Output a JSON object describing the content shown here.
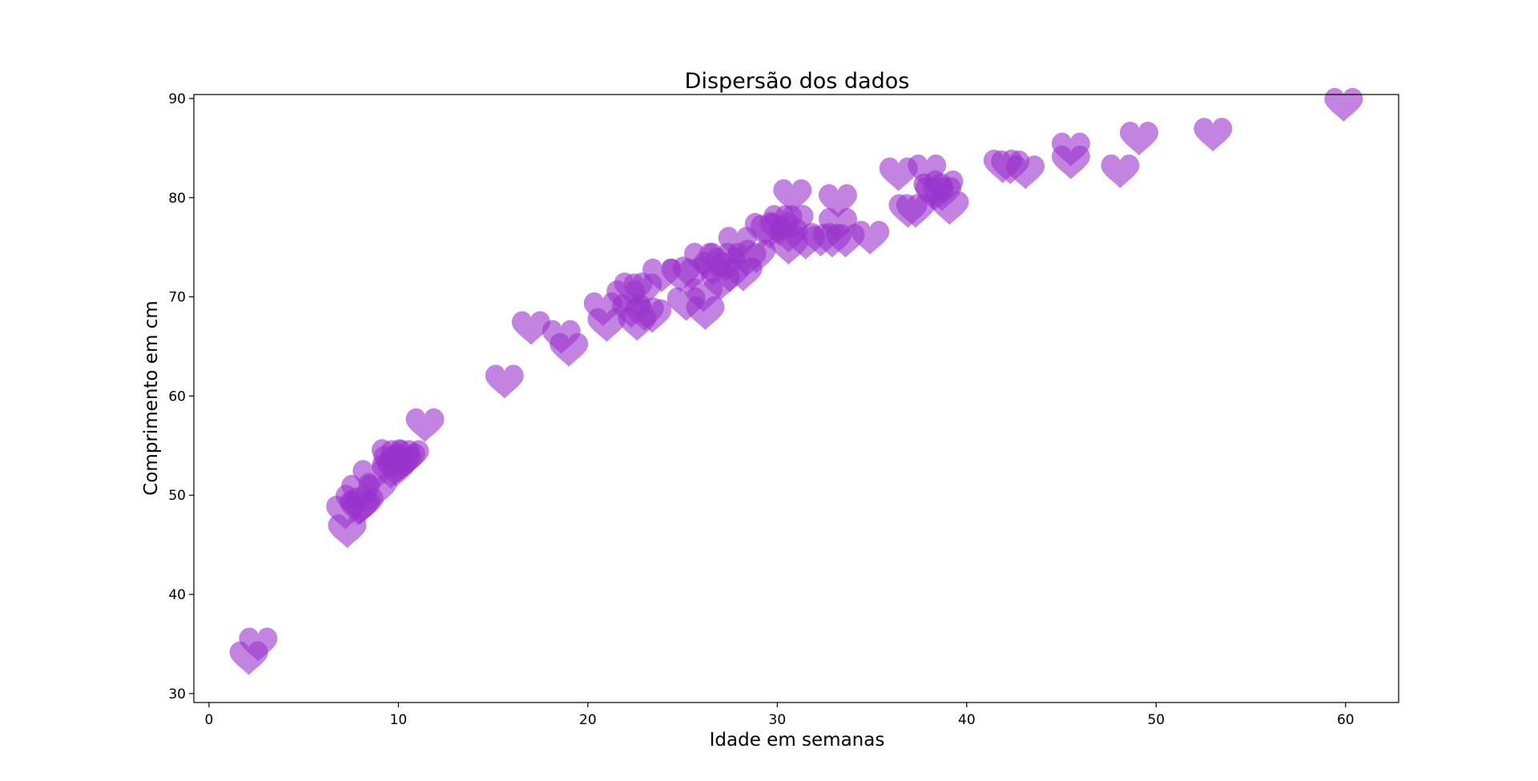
{
  "chart_data": {
    "type": "scatter",
    "title": "Dispersão dos dados",
    "xlabel": "Idade em semanas",
    "ylabel": "Comprimento em cm",
    "xlim": [
      -0.8,
      62.8
    ],
    "ylim": [
      29.1,
      90.4
    ],
    "xticks": [
      0,
      10,
      20,
      30,
      40,
      50,
      60
    ],
    "yticks": [
      30,
      40,
      50,
      60,
      70,
      80,
      90
    ],
    "grid": false,
    "marker": "heart",
    "color": "#9932CC",
    "alpha": 0.6,
    "points": [
      [
        2.1,
        33.8
      ],
      [
        2.6,
        35.2
      ],
      [
        7.3,
        46.6
      ],
      [
        7.2,
        48.5
      ],
      [
        7.7,
        49.6
      ],
      [
        8.0,
        50.6
      ],
      [
        7.9,
        48.9
      ],
      [
        8.2,
        49.3
      ],
      [
        8.0,
        49.0
      ],
      [
        8.6,
        52.1
      ],
      [
        8.9,
        50.8
      ],
      [
        9.6,
        54.2
      ],
      [
        9.7,
        53.5
      ],
      [
        10.1,
        54.1
      ],
      [
        10.4,
        53.8
      ],
      [
        10.0,
        53.2
      ],
      [
        9.9,
        52.8
      ],
      [
        9.6,
        52.6
      ],
      [
        10.2,
        53.5
      ],
      [
        10.6,
        54.1
      ],
      [
        11.4,
        57.3
      ],
      [
        15.6,
        61.7
      ],
      [
        17.0,
        67.1
      ],
      [
        18.6,
        66.2
      ],
      [
        19.0,
        64.9
      ],
      [
        20.8,
        69.0
      ],
      [
        21.0,
        67.4
      ],
      [
        22.0,
        70.2
      ],
      [
        22.4,
        71.0
      ],
      [
        22.9,
        70.9
      ],
      [
        22.3,
        68.8
      ],
      [
        22.6,
        67.5
      ],
      [
        23.0,
        68.5
      ],
      [
        23.4,
        68.3
      ],
      [
        23.9,
        72.4
      ],
      [
        24.9,
        72.4
      ],
      [
        25.2,
        69.5
      ],
      [
        25.5,
        72.6
      ],
      [
        26.1,
        74.0
      ],
      [
        26.1,
        70.4
      ],
      [
        26.2,
        68.6
      ],
      [
        26.6,
        73.1
      ],
      [
        26.9,
        74.0
      ],
      [
        27.0,
        71.6
      ],
      [
        27.3,
        73.5
      ],
      [
        27.5,
        72.4
      ],
      [
        27.9,
        75.6
      ],
      [
        28.2,
        72.5
      ],
      [
        28.4,
        74.0
      ],
      [
        28.9,
        74.3
      ],
      [
        29.3,
        77.0
      ],
      [
        29.6,
        76.8
      ],
      [
        30.3,
        77.8
      ],
      [
        30.1,
        77.1
      ],
      [
        30.6,
        76.4
      ],
      [
        30.9,
        77.8
      ],
      [
        30.6,
        75.2
      ],
      [
        31.5,
        75.7
      ],
      [
        32.3,
        76.0
      ],
      [
        30.8,
        80.4
      ],
      [
        32.9,
        75.9
      ],
      [
        33.2,
        77.5
      ],
      [
        33.2,
        79.9
      ],
      [
        33.6,
        75.9
      ],
      [
        34.9,
        76.2
      ],
      [
        36.4,
        82.6
      ],
      [
        36.9,
        78.9
      ],
      [
        37.3,
        78.9
      ],
      [
        37.9,
        82.9
      ],
      [
        38.2,
        81.0
      ],
      [
        38.3,
        80.6
      ],
      [
        38.8,
        81.3
      ],
      [
        38.7,
        80.6
      ],
      [
        39.1,
        79.2
      ],
      [
        41.9,
        83.4
      ],
      [
        42.3,
        83.3
      ],
      [
        43.1,
        82.8
      ],
      [
        45.5,
        83.8
      ],
      [
        45.5,
        85.1
      ],
      [
        48.1,
        82.9
      ],
      [
        49.1,
        86.2
      ],
      [
        53.0,
        86.6
      ],
      [
        59.9,
        89.6
      ]
    ]
  }
}
